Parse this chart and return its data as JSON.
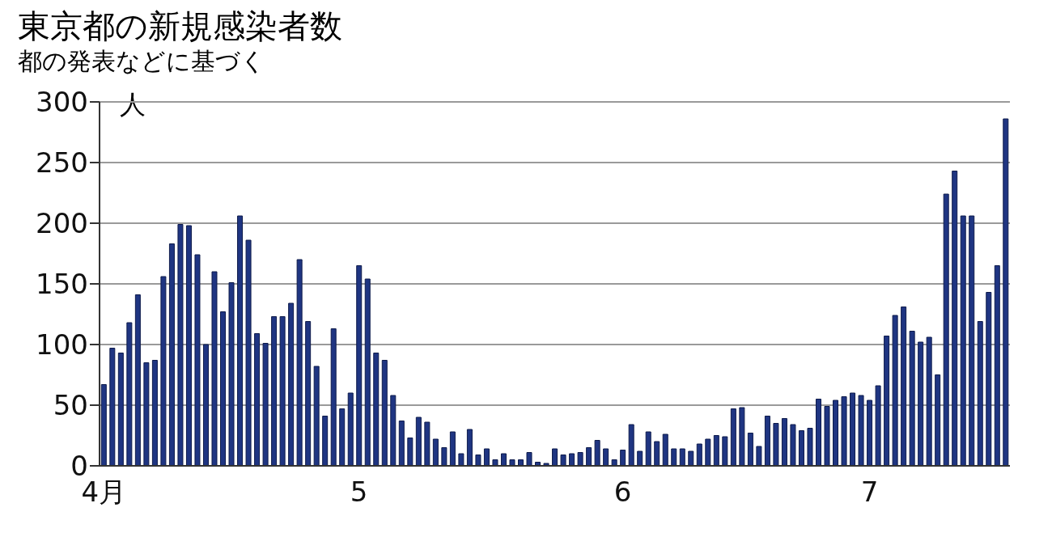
{
  "chart_data": {
    "type": "bar",
    "title": "東京都の新規感染者数",
    "subtitle": "都の発表などに基づく",
    "ylabel": "人",
    "categories": [
      "4月",
      null,
      null,
      null,
      null,
      null,
      null,
      null,
      null,
      null,
      null,
      null,
      null,
      null,
      null,
      null,
      null,
      null,
      null,
      null,
      null,
      null,
      null,
      null,
      null,
      null,
      null,
      null,
      null,
      null,
      "5",
      null,
      null,
      null,
      null,
      null,
      null,
      null,
      null,
      null,
      null,
      null,
      null,
      null,
      null,
      null,
      null,
      null,
      null,
      null,
      null,
      null,
      null,
      null,
      null,
      null,
      null,
      null,
      null,
      null,
      null,
      "6",
      null,
      null,
      null,
      null,
      null,
      null,
      null,
      null,
      null,
      null,
      null,
      null,
      null,
      null,
      null,
      null,
      null,
      null,
      null,
      null,
      null,
      null,
      null,
      null,
      null,
      null,
      null,
      null,
      "7",
      null,
      null,
      null,
      null,
      null,
      null,
      null,
      null,
      null,
      null,
      null,
      null,
      null,
      null,
      null,
      null
    ],
    "values": [
      67,
      97,
      93,
      118,
      141,
      85,
      87,
      156,
      183,
      199,
      198,
      174,
      100,
      160,
      127,
      151,
      206,
      186,
      109,
      101,
      123,
      123,
      134,
      170,
      119,
      82,
      41,
      113,
      47,
      60,
      165,
      154,
      93,
      87,
      58,
      37,
      23,
      40,
      36,
      22,
      15,
      28,
      10,
      30,
      9,
      14,
      5,
      10,
      5,
      5,
      11,
      3,
      2,
      14,
      9,
      10,
      11,
      15,
      21,
      14,
      5,
      13,
      34,
      12,
      28,
      20,
      26,
      14,
      14,
      12,
      18,
      22,
      25,
      24,
      47,
      48,
      27,
      16,
      41,
      35,
      39,
      34,
      29,
      31,
      55,
      49,
      54,
      57,
      60,
      58,
      54,
      66,
      107,
      124,
      131,
      111,
      102,
      106,
      75,
      224,
      243,
      206,
      206,
      119,
      143,
      165,
      286
    ],
    "color": "#1f3582",
    "ylim": [
      0,
      300
    ],
    "yticks": [
      0,
      50,
      100,
      150,
      200,
      250,
      300
    ],
    "grid": "y"
  }
}
